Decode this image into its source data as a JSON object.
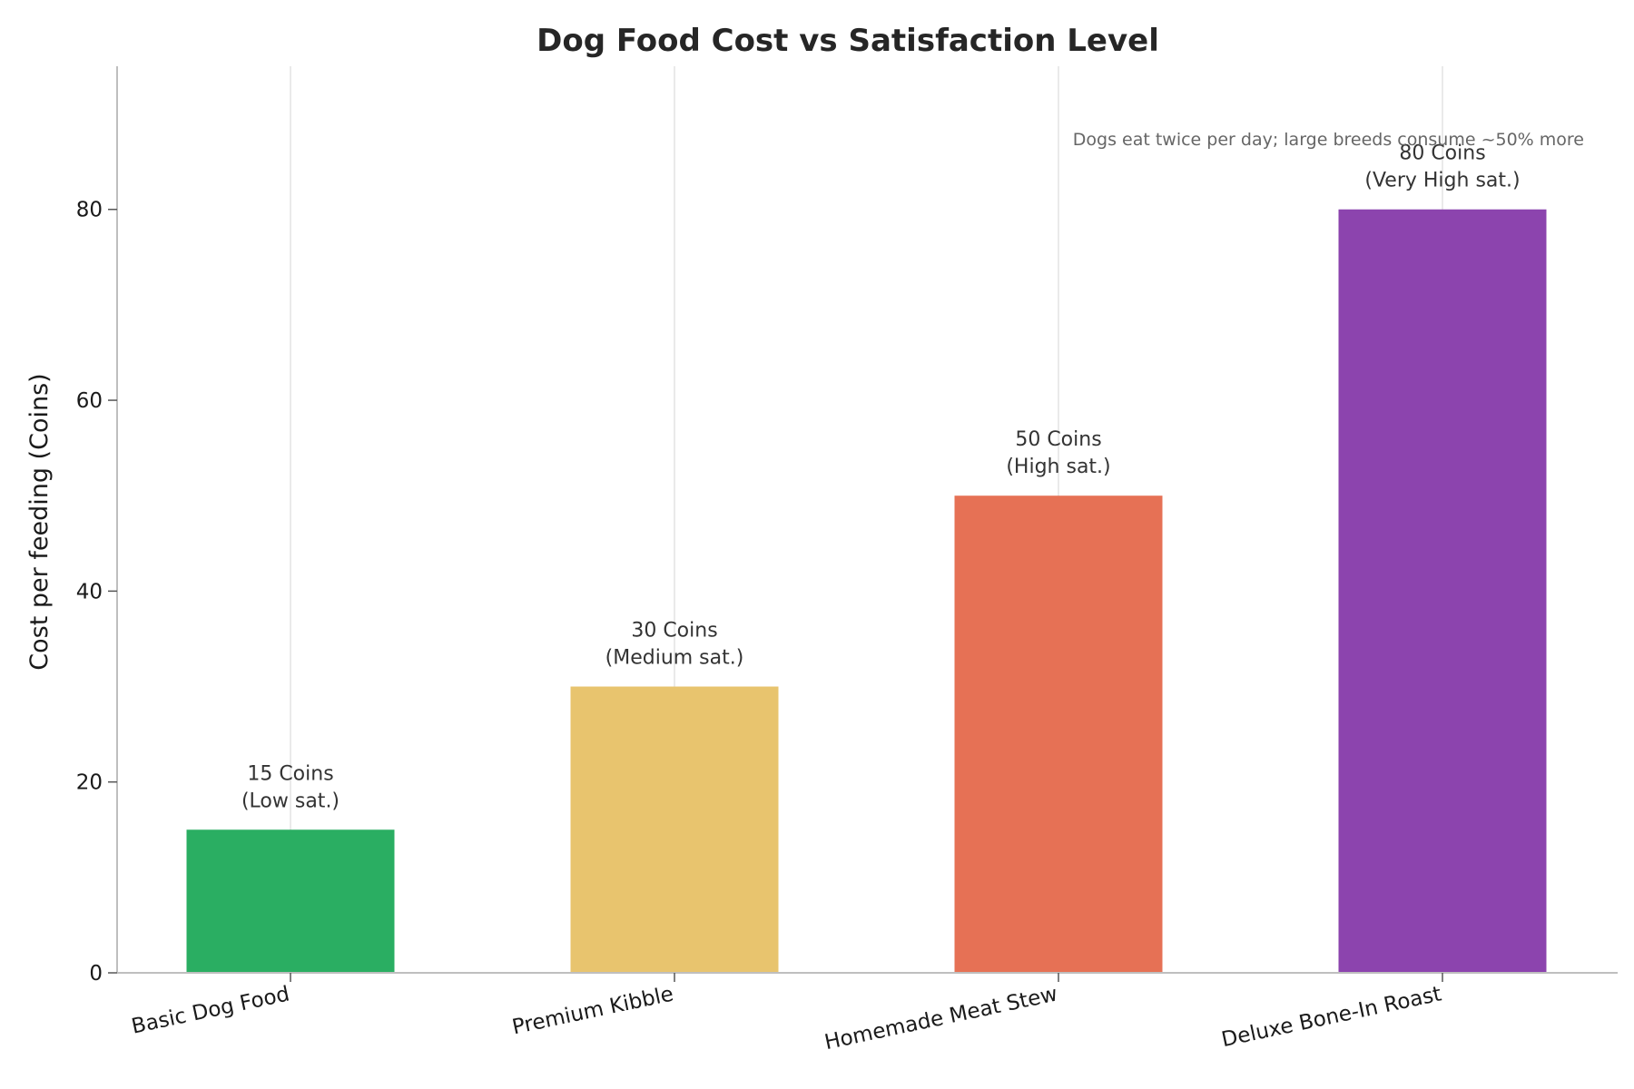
{
  "chart_data": {
    "type": "bar",
    "title": "Dog Food Cost vs Satisfaction Level",
    "xlabel": "",
    "ylabel": "Cost per feeding (Coins)",
    "categories": [
      "Basic Dog Food",
      "Premium Kibble",
      "Homemade Meat Stew",
      "Deluxe Bone-In Roast"
    ],
    "values": [
      15,
      30,
      50,
      80
    ],
    "data_labels": [
      [
        "15 Coins",
        "(Low sat.)"
      ],
      [
        "30 Coins",
        "(Medium sat.)"
      ],
      [
        "50 Coins",
        "(High sat.)"
      ],
      [
        "80 Coins",
        "(Very High sat.)"
      ]
    ],
    "colors": [
      "#2aae62",
      "#e8c46e",
      "#e67155",
      "#8c44ae"
    ],
    "ylim": [
      0,
      95
    ],
    "yticks": [
      0,
      20,
      40,
      60,
      80
    ],
    "grid": "vertical",
    "annotation": "Dogs eat twice per day; large breeds consume ~50% more"
  }
}
